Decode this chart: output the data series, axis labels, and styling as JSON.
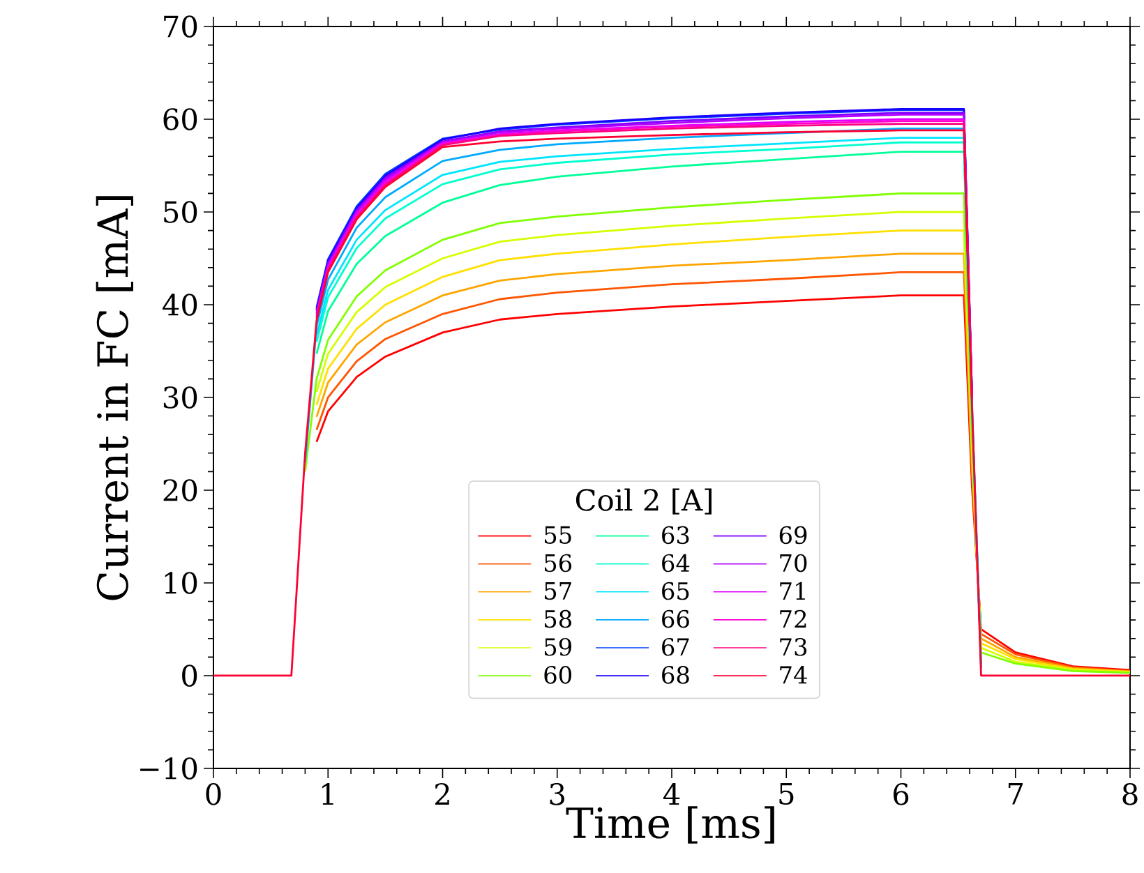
{
  "chart_data": {
    "type": "line",
    "xlabel": "Time [ms]",
    "ylabel": "Current in FC [mA]",
    "legend_title": "Coil 2 [A]",
    "legend": "bottom",
    "grid": false,
    "line_style": "solid",
    "marker": "none",
    "x": [
      0,
      0.68,
      0.72,
      0.8,
      0.9,
      1.0,
      1.25,
      1.5,
      2,
      2.5,
      3,
      4,
      5,
      6,
      6.55,
      6.62,
      6.7,
      7,
      7.5,
      8
    ],
    "xlim": [
      0,
      8
    ],
    "xticks": [
      0,
      1,
      2,
      3,
      4,
      5,
      6,
      7,
      8
    ],
    "ylim": [
      -10,
      70
    ],
    "yticks": [
      {
        "value": -10,
        "label": "−10"
      },
      0,
      10,
      20,
      30,
      40,
      50,
      60,
      70
    ],
    "series": [
      {
        "name": "55",
        "color": "#ff0000",
        "values": [
          null,
          null,
          null,
          null,
          25.2,
          28.5,
          32.2,
          34.4,
          37,
          38.4,
          39,
          39.8,
          40.4,
          41,
          41,
          20.5,
          5,
          2.5,
          1,
          0.6
        ]
      },
      {
        "name": "56",
        "color": "#ff5500",
        "values": [
          null,
          null,
          null,
          null,
          26.5,
          30,
          33.9,
          36.3,
          39,
          40.6,
          41.3,
          42.2,
          42.8,
          43.5,
          43.5,
          21.8,
          4.5,
          2.3,
          0.9,
          0.5
        ]
      },
      {
        "name": "57",
        "color": "#ffa500",
        "values": [
          null,
          null,
          null,
          null,
          27.9,
          31.6,
          35.7,
          38.1,
          41,
          42.6,
          43.3,
          44.2,
          44.8,
          45.5,
          45.5,
          22.8,
          4,
          2,
          0.8,
          0.45
        ]
      },
      {
        "name": "58",
        "color": "#ffe000",
        "values": [
          null,
          null,
          null,
          null,
          29.2,
          33.1,
          37.4,
          40,
          43,
          44.8,
          45.5,
          46.5,
          47.3,
          48,
          48,
          24,
          3.5,
          1.8,
          0.7,
          0.4
        ]
      },
      {
        "name": "59",
        "color": "#d4ff00",
        "values": [
          null,
          null,
          null,
          null,
          30.6,
          34.7,
          39.2,
          41.9,
          45,
          46.8,
          47.5,
          48.5,
          49.3,
          50,
          50,
          25,
          3,
          1.5,
          0.6,
          0.35
        ]
      },
      {
        "name": "60",
        "color": "#80ff00",
        "values": [
          null,
          null,
          null,
          22,
          32,
          36.2,
          40.9,
          43.7,
          47,
          48.8,
          49.5,
          50.5,
          51.3,
          52,
          52,
          26,
          2.5,
          1.3,
          0.5,
          0.3
        ]
      },
      {
        "name": "63",
        "color": "#00ff99",
        "values": [
          null,
          null,
          null,
          null,
          34.7,
          39.3,
          44.4,
          47.4,
          51,
          52.9,
          53.8,
          54.9,
          55.7,
          56.5,
          56.5,
          28.3,
          1.5,
          null,
          null,
          null
        ]
      },
      {
        "name": "64",
        "color": "#00ffd0",
        "values": [
          null,
          null,
          null,
          null,
          36,
          40.8,
          46.1,
          49.3,
          53,
          54.6,
          55.3,
          56.2,
          56.8,
          57.5,
          57.5,
          28.8,
          1.2,
          null,
          null,
          null
        ]
      },
      {
        "name": "65",
        "color": "#00e5ff",
        "values": [
          null,
          null,
          null,
          null,
          36.7,
          41.6,
          47,
          50.2,
          54,
          55.4,
          56,
          56.8,
          57.4,
          58,
          58,
          29,
          1,
          null,
          null,
          null
        ]
      },
      {
        "name": "66",
        "color": "#00aaff",
        "values": [
          null,
          null,
          null,
          23,
          37.7,
          42.7,
          48.3,
          51.6,
          55.5,
          56.7,
          57.3,
          58,
          58.5,
          59,
          59,
          29.5,
          0.8,
          null,
          null,
          null
        ]
      },
      {
        "name": "67",
        "color": "#0040ff",
        "values": [
          null,
          null,
          null,
          null,
          39.7,
          44.9,
          50.6,
          54.1,
          57.9,
          58.9,
          59.4,
          60.1,
          60.6,
          61,
          61,
          30.5,
          null,
          null,
          null,
          null
        ]
      },
      {
        "name": "68",
        "color": "#1a00ff",
        "values": [
          null,
          null,
          null,
          null,
          39.5,
          44.7,
          50.4,
          53.9,
          57.8,
          59,
          59.5,
          60.2,
          60.7,
          61.1,
          61.1,
          30.6,
          null,
          null,
          null,
          null
        ]
      },
      {
        "name": "69",
        "color": "#8000ff",
        "values": [
          null,
          null,
          null,
          null,
          39.3,
          44.5,
          50.2,
          53.7,
          57.6,
          58.7,
          59.1,
          59.8,
          60.3,
          60.7,
          60.7,
          30.4,
          null,
          null,
          null,
          null
        ]
      },
      {
        "name": "70",
        "color": "#b000ff",
        "values": [
          null,
          null,
          null,
          null,
          39.1,
          44.3,
          50,
          53.5,
          57.5,
          58.6,
          59,
          59.6,
          60.1,
          60.5,
          60.5,
          30.3,
          null,
          null,
          null,
          null
        ]
      },
      {
        "name": "71",
        "color": "#e000ff",
        "values": [
          null,
          null,
          null,
          null,
          38.9,
          44.1,
          49.8,
          53.3,
          57.4,
          58.4,
          58.8,
          59.3,
          59.7,
          60,
          60,
          30,
          null,
          null,
          null,
          null
        ]
      },
      {
        "name": "72",
        "color": "#ff00d0",
        "values": [
          null,
          null,
          null,
          null,
          38.7,
          43.9,
          49.6,
          53.1,
          57.3,
          58.3,
          58.7,
          59.2,
          59.5,
          59.8,
          59.8,
          29.9,
          null,
          null,
          null,
          null
        ]
      },
      {
        "name": "73",
        "color": "#ff0080",
        "values": [
          null,
          null,
          null,
          null,
          38.5,
          43.7,
          49.4,
          52.9,
          57.2,
          58.2,
          58.5,
          59,
          59.3,
          59.5,
          59.5,
          29.8,
          null,
          null,
          null,
          null
        ]
      },
      {
        "name": "74",
        "color": "#ff0030",
        "values": [
          0,
          0,
          8,
          24,
          38.3,
          43.5,
          49.2,
          52.7,
          57,
          57.6,
          57.9,
          58.3,
          58.6,
          58.8,
          58.8,
          29.4,
          0,
          0,
          0,
          0
        ]
      }
    ]
  }
}
